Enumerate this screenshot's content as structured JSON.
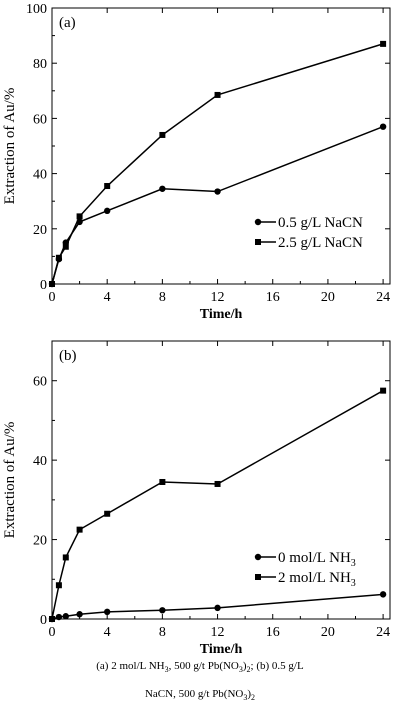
{
  "chart_data": [
    {
      "type": "line",
      "panel_label": "(a)",
      "x": [
        0,
        0.5,
        1,
        2,
        4,
        8,
        12,
        24
      ],
      "x_ticks": [
        0,
        4,
        8,
        12,
        16,
        20,
        24
      ],
      "x_tick_labels": [
        "0",
        "4",
        "8",
        "12",
        "16",
        "20",
        "24"
      ],
      "xlim": [
        0,
        24.5
      ],
      "y_ticks": [
        0,
        20,
        40,
        60,
        80,
        100
      ],
      "y_tick_labels": [
        "0",
        "20",
        "40",
        "60",
        "80",
        "100"
      ],
      "ylim": [
        0,
        100
      ],
      "xlabel": "Time/h",
      "ylabel": "Extraction of Au/%",
      "legend_position": "bottom-right",
      "grid": false,
      "series": [
        {
          "name": "0.5 g/L NaCN",
          "marker": "circle",
          "values": [
            0,
            9,
            15,
            22.5,
            26.5,
            34.5,
            33.5,
            57
          ]
        },
        {
          "name": "2.5 g/L NaCN",
          "marker": "square",
          "values": [
            0,
            9.5,
            13.5,
            24.5,
            35.5,
            54,
            68.5,
            87
          ]
        }
      ]
    },
    {
      "type": "line",
      "panel_label": "(b)",
      "x": [
        0,
        0.5,
        1,
        2,
        4,
        8,
        12,
        24
      ],
      "x_ticks": [
        0,
        4,
        8,
        12,
        16,
        20,
        24
      ],
      "x_tick_labels": [
        "0",
        "4",
        "8",
        "12",
        "16",
        "20",
        "24"
      ],
      "xlim": [
        0,
        24.5
      ],
      "y_ticks": [
        0,
        20,
        40,
        60
      ],
      "y_tick_labels": [
        "0",
        "20",
        "40",
        "60"
      ],
      "ylim": [
        0,
        70
      ],
      "xlabel": "Time/h",
      "ylabel": "Extraction of Au/%",
      "legend_position": "bottom-right",
      "grid": false,
      "series": [
        {
          "name": "0 mol/L NH3",
          "name_text": "0 mol/L NH",
          "name_sub": "3",
          "marker": "circle",
          "values": [
            0,
            0.5,
            0.7,
            1.2,
            1.8,
            2.2,
            2.8,
            6.2
          ]
        },
        {
          "name": "2 mol/L NH3",
          "name_text": "2 mol/L NH",
          "name_sub": "3",
          "marker": "square",
          "values": [
            0,
            8.5,
            15.5,
            22.5,
            26.5,
            34.5,
            34,
            57.5
          ]
        }
      ]
    }
  ],
  "caption": {
    "line1_a": "(a) 2 mol/L NH",
    "line1_a_sub": "3",
    "line1_b": ", 500 g/t Pb(NO",
    "line1_b_sub": "3",
    "line1_c": ")",
    "line1_c_sub": "2",
    "line1_d": "; (b) 0.5 g/L",
    "line2_a": "NaCN, 500 g/t Pb(NO",
    "line2_a_sub": "3",
    "line2_b": ")",
    "line2_b_sub": "2"
  }
}
